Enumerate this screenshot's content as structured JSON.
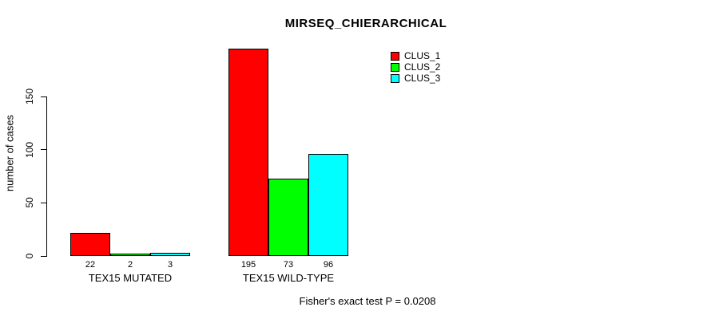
{
  "chart_data": {
    "type": "bar",
    "title": "MIRSEQ_CHIERARCHICAL",
    "ylabel": "number of cases",
    "xlabel": "",
    "categories": [
      "TEX15 MUTATED",
      "TEX15 WILD-TYPE"
    ],
    "series": [
      {
        "name": "CLUS_1",
        "color": "#ff0000",
        "values": [
          22,
          195
        ]
      },
      {
        "name": "CLUS_2",
        "color": "#00ff00",
        "values": [
          2,
          73
        ]
      },
      {
        "name": "CLUS_3",
        "color": "#00ffff",
        "values": [
          3,
          96
        ]
      }
    ],
    "value_labels": [
      [
        "22",
        "2",
        "3"
      ],
      [
        "195",
        "73",
        "96"
      ]
    ],
    "yticks": [
      0,
      50,
      100,
      150
    ],
    "ylim": [
      0,
      195
    ],
    "grid": false,
    "legend_position": "top-right",
    "legend_entries": [
      "CLUS_1",
      "CLUS_2",
      "CLUS_3"
    ],
    "caption": "Fisher's exact test P = 0.0208"
  },
  "colors": {
    "background": "#ffffff",
    "axis": "#000000",
    "text": "#000000",
    "clus_1": "#ff0000",
    "clus_2": "#00ff00",
    "clus_3": "#00ffff"
  }
}
